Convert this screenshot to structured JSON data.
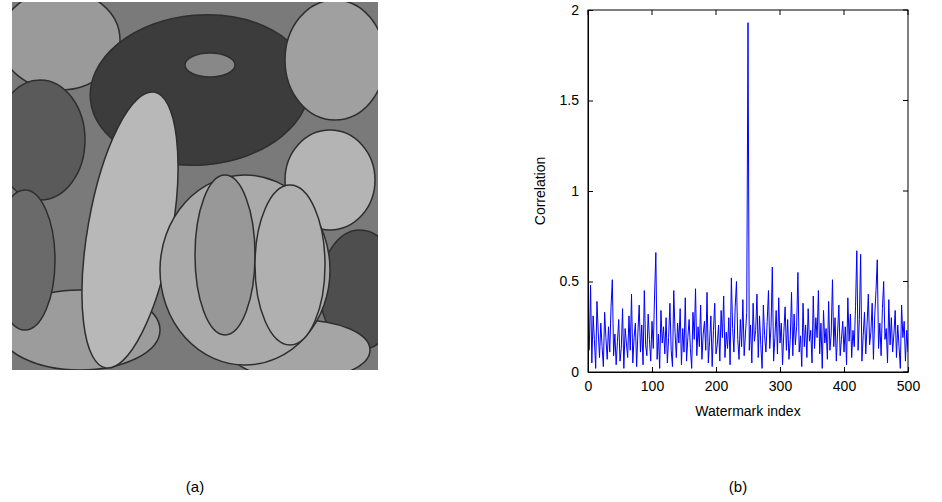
{
  "image_panel": {
    "caption": "(a)"
  },
  "chart_data": {
    "type": "line",
    "caption": "(b)",
    "xlabel": "Watermark index",
    "ylabel": "Correlation",
    "color": "#0000ff",
    "grid": false,
    "xlim": [
      0,
      500
    ],
    "xticks": [
      0,
      100,
      200,
      300,
      400,
      500
    ],
    "ylim": [
      0,
      2
    ],
    "yticks": [
      0,
      0.5,
      1,
      1.5,
      2
    ],
    "x": [
      2,
      4,
      6,
      8,
      10,
      12,
      14,
      16,
      18,
      20,
      22,
      24,
      26,
      28,
      30,
      32,
      34,
      36,
      38,
      40,
      42,
      44,
      46,
      48,
      50,
      52,
      54,
      56,
      58,
      60,
      62,
      64,
      66,
      68,
      70,
      72,
      74,
      76,
      78,
      80,
      82,
      84,
      86,
      88,
      90,
      92,
      94,
      96,
      98,
      100,
      102,
      104,
      106,
      108,
      110,
      112,
      114,
      116,
      118,
      120,
      122,
      124,
      126,
      128,
      130,
      132,
      134,
      136,
      138,
      140,
      142,
      144,
      146,
      148,
      150,
      152,
      154,
      156,
      158,
      160,
      162,
      164,
      166,
      168,
      170,
      172,
      174,
      176,
      178,
      180,
      182,
      184,
      186,
      188,
      190,
      192,
      194,
      196,
      198,
      200,
      202,
      204,
      206,
      208,
      210,
      212,
      214,
      216,
      218,
      220,
      222,
      224,
      226,
      228,
      230,
      232,
      234,
      236,
      238,
      240,
      242,
      244,
      246,
      248,
      250,
      252,
      254,
      256,
      258,
      260,
      262,
      264,
      266,
      268,
      270,
      272,
      274,
      276,
      278,
      280,
      282,
      284,
      286,
      288,
      290,
      292,
      294,
      296,
      298,
      300,
      302,
      304,
      306,
      308,
      310,
      312,
      314,
      316,
      318,
      320,
      322,
      324,
      326,
      328,
      330,
      332,
      334,
      336,
      338,
      340,
      342,
      344,
      346,
      348,
      350,
      352,
      354,
      356,
      358,
      360,
      362,
      364,
      366,
      368,
      370,
      372,
      374,
      376,
      378,
      380,
      382,
      384,
      386,
      388,
      390,
      392,
      394,
      396,
      398,
      400,
      402,
      404,
      406,
      408,
      410,
      412,
      414,
      416,
      418,
      420,
      422,
      424,
      426,
      428,
      430,
      432,
      434,
      436,
      438,
      440,
      442,
      444,
      446,
      448,
      450,
      452,
      454,
      456,
      458,
      460,
      462,
      464,
      466,
      468,
      470,
      472,
      474,
      476,
      478,
      480,
      482,
      484,
      486,
      488,
      490,
      492,
      494,
      496,
      498,
      500
    ],
    "values": [
      0.12,
      0.48,
      0.05,
      0.31,
      0.18,
      0.02,
      0.39,
      0.22,
      0.08,
      0.27,
      0.14,
      0.03,
      0.33,
      0.19,
      0.07,
      0.25,
      0.11,
      0.36,
      0.51,
      0.09,
      0.21,
      0.04,
      0.17,
      0.29,
      0.06,
      0.13,
      0.35,
      0.02,
      0.24,
      0.16,
      0.08,
      0.31,
      0.12,
      0.43,
      0.05,
      0.19,
      0.27,
      0.03,
      0.22,
      0.37,
      0.11,
      0.26,
      0.04,
      0.45,
      0.15,
      0.09,
      0.32,
      0.18,
      0.06,
      0.28,
      0.13,
      0.42,
      0.66,
      0.07,
      0.21,
      0.02,
      0.34,
      0.16,
      0.25,
      0.1,
      0.3,
      0.05,
      0.19,
      0.38,
      0.12,
      0.03,
      0.45,
      0.22,
      0.08,
      0.27,
      0.16,
      0.35,
      0.04,
      0.24,
      0.11,
      0.41,
      0.06,
      0.19,
      0.29,
      0.13,
      0.02,
      0.33,
      0.18,
      0.46,
      0.09,
      0.25,
      0.14,
      0.37,
      0.07,
      0.21,
      0.28,
      0.12,
      0.44,
      0.05,
      0.17,
      0.31,
      0.03,
      0.23,
      0.38,
      0.1,
      0.15,
      0.26,
      0.06,
      0.34,
      0.19,
      0.42,
      0.08,
      0.22,
      0.13,
      0.3,
      0.04,
      0.52,
      0.24,
      0.11,
      0.36,
      0.5,
      0.18,
      0.07,
      0.29,
      0.14,
      0.4,
      0.09,
      0.21,
      0.33,
      1.93,
      0.12,
      0.26,
      0.05,
      0.38,
      0.17,
      0.23,
      0.43,
      0.08,
      0.31,
      0.15,
      0.02,
      0.37,
      0.2,
      0.11,
      0.28,
      0.45,
      0.13,
      0.25,
      0.58,
      0.06,
      0.19,
      0.34,
      0.1,
      0.41,
      0.16,
      0.27,
      0.04,
      0.22,
      0.36,
      0.12,
      0.29,
      0.07,
      0.18,
      0.44,
      0.09,
      0.32,
      0.15,
      0.25,
      0.55,
      0.11,
      0.2,
      0.03,
      0.38,
      0.14,
      0.26,
      0.08,
      0.35,
      0.17,
      0.23,
      0.05,
      0.42,
      0.13,
      0.3,
      0.19,
      0.45,
      0.1,
      0.27,
      0.02,
      0.34,
      0.16,
      0.24,
      0.07,
      0.39,
      0.12,
      0.21,
      0.51,
      0.14,
      0.3,
      0.06,
      0.22,
      0.37,
      0.09,
      0.18,
      0.28,
      0.11,
      0.25,
      0.04,
      0.41,
      0.17,
      0.32,
      0.08,
      0.23,
      0.14,
      0.36,
      0.67,
      0.12,
      0.29,
      0.65,
      0.06,
      0.2,
      0.33,
      0.1,
      0.26,
      0.43,
      0.15,
      0.22,
      0.38,
      0.07,
      0.31,
      0.45,
      0.62,
      0.13,
      0.27,
      0.09,
      0.35,
      0.5,
      0.18,
      0.24,
      0.05,
      0.4,
      0.15,
      0.3,
      0.11,
      0.21,
      0.34,
      0.08,
      0.26,
      0.14,
      0.02,
      0.37,
      0.19,
      0.28,
      0.06,
      0.23,
      0.11
    ]
  }
}
